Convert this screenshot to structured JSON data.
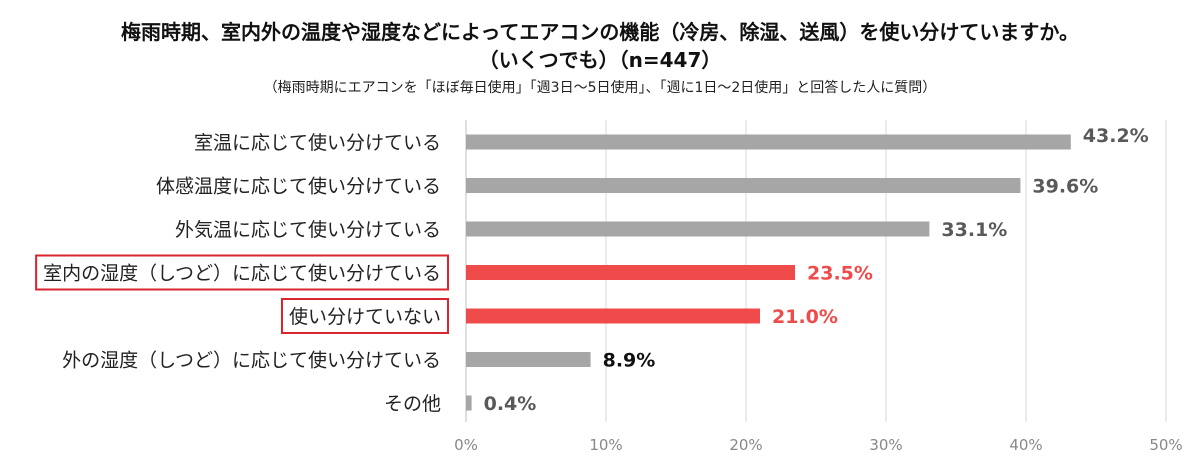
{
  "chart_data": {
    "type": "bar",
    "orientation": "horizontal",
    "title_line1": "梅雨時期、室内外の温度や湿度などによってエアコンの機能（冷房、除湿、送風）を使い分けていますか。",
    "title_line2": "（いくつでも）（n=447）",
    "subtitle": "（梅雨時期にエアコンを「ほぼ毎日使用」「週3日～5日使用」、「週に1日～2日使用」と回答した人に質問）",
    "categories": [
      "室温に応じて使い分けている",
      "体感温度に応じて使い分けている",
      "外気温に応じて使い分けている",
      "室内の湿度（しつど）に応じて使い分けている",
      "使い分けていない",
      "外の湿度（しつど）に応じて使い分けている",
      "その他"
    ],
    "values": [
      43.2,
      39.6,
      33.1,
      23.5,
      21.0,
      8.9,
      0.4
    ],
    "value_labels": [
      "43.2%",
      "39.6%",
      "33.1%",
      "23.5%",
      "21.0%",
      "8.9%",
      "0.4%"
    ],
    "highlighted": [
      false,
      false,
      false,
      true,
      true,
      false,
      false
    ],
    "xlim": [
      0,
      50
    ],
    "ticks": [
      "0%",
      "10%",
      "20%",
      "30%",
      "40%",
      "50%"
    ],
    "xlabel": "",
    "ylabel": "",
    "grid": true,
    "legend": "none"
  },
  "colors": {
    "bar_default": "#a6a6a6",
    "bar_highlight": "#f04b4b",
    "label_default": "#595959",
    "label_highlight": "#f04b4b",
    "label_dark": "#111111",
    "highlight_box": "#d9262e",
    "grid": "#d9d9d9"
  }
}
